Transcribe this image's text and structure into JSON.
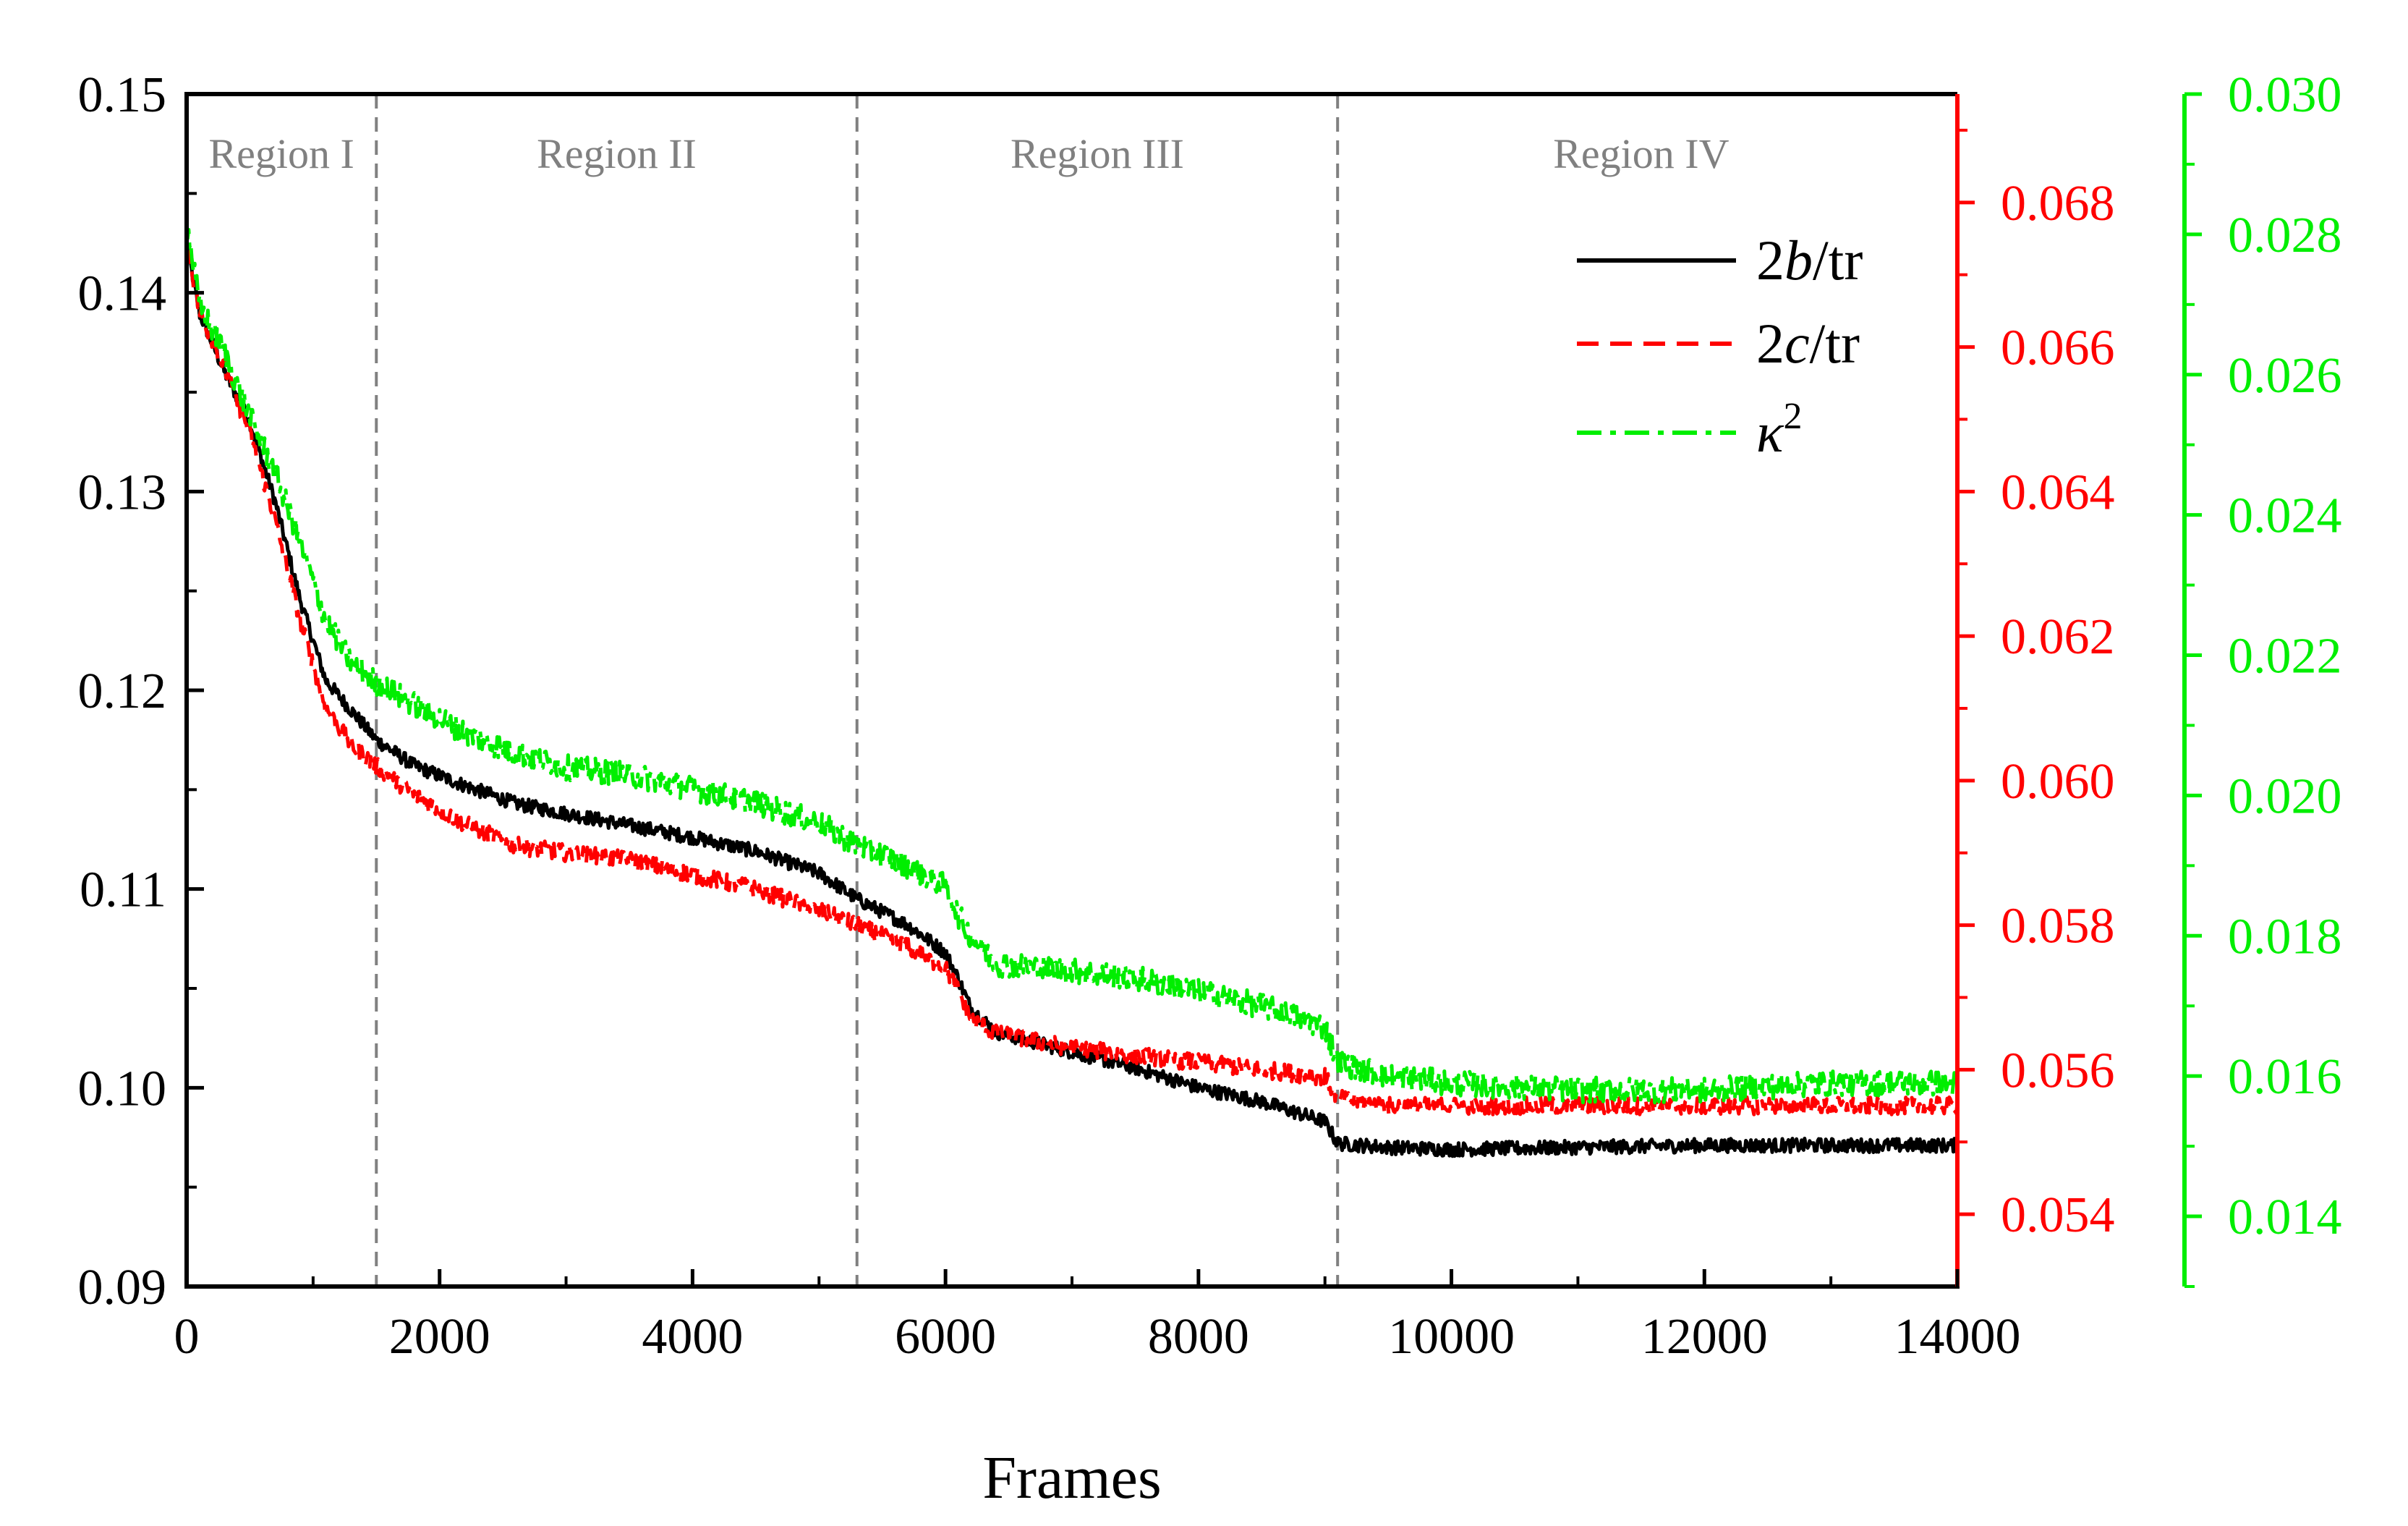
{
  "chart_data": {
    "type": "line",
    "xlabel": "Frames",
    "xlim": [
      0,
      14000
    ],
    "x_ticks": [
      0,
      2000,
      4000,
      6000,
      8000,
      10000,
      12000,
      14000
    ],
    "x_tick_labels": [
      "0",
      "2000",
      "4000",
      "6000",
      "8000",
      "10000",
      "12000",
      "14000"
    ],
    "axes": {
      "left": {
        "ylim": [
          0.09,
          0.15
        ],
        "ticks": [
          0.09,
          0.1,
          0.11,
          0.12,
          0.13,
          0.14,
          0.15
        ],
        "tick_labels": [
          "0.09",
          "0.10",
          "0.11",
          "0.12",
          "0.13",
          "0.14",
          "0.15"
        ],
        "color": "#000000"
      },
      "right_red": {
        "ylim": [
          0.053,
          0.0695
        ],
        "ticks": [
          0.054,
          0.056,
          0.058,
          0.06,
          0.062,
          0.064,
          0.066,
          0.068
        ],
        "tick_labels": [
          "0.054",
          "0.056",
          "0.058",
          "0.060",
          "0.062",
          "0.064",
          "0.066",
          "0.068"
        ],
        "color": "#ff0000"
      },
      "right_green": {
        "ylim": [
          0.013,
          0.03
        ],
        "ticks": [
          0.014,
          0.016,
          0.018,
          0.02,
          0.022,
          0.024,
          0.026,
          0.028,
          0.03
        ],
        "tick_labels": [
          "0.014",
          "0.016",
          "0.018",
          "0.020",
          "0.022",
          "0.024",
          "0.026",
          "0.028",
          "0.030"
        ],
        "color": "#00ee00"
      }
    },
    "regions": {
      "boundaries": [
        1500,
        5300,
        9100
      ],
      "labels": [
        {
          "text": "Region I",
          "x": 750
        },
        {
          "text": "Region II",
          "x": 3400
        },
        {
          "text": "Region III",
          "x": 7200
        },
        {
          "text": "Region IV",
          "x": 11500
        }
      ]
    },
    "legend": {
      "position": "top-right",
      "entries": [
        {
          "series": "2b/tr",
          "italic_part": "b",
          "prefix": "2",
          "suffix": "/tr",
          "color": "#000000",
          "dash": "solid"
        },
        {
          "series": "2c/tr",
          "italic_part": "c",
          "prefix": "2",
          "suffix": "/tr",
          "color": "#ff0000",
          "dash": "dashed"
        },
        {
          "series": "κ2",
          "italic_part": "κ",
          "prefix": "",
          "suffix": "",
          "superscript": "2",
          "color": "#00ee00",
          "dash": "dash-dot"
        }
      ]
    },
    "series": [
      {
        "name": "2b/tr",
        "axis": "left",
        "color": "#000000",
        "noise": 0.00035,
        "x": [
          0,
          100,
          300,
          500,
          700,
          900,
          1100,
          1300,
          1500,
          1800,
          2200,
          2600,
          3000,
          3500,
          4000,
          4500,
          5000,
          5300,
          5700,
          6000,
          6100,
          6200,
          6400,
          7000,
          7500,
          8000,
          8500,
          9000,
          9100,
          9500,
          10000,
          11000,
          12000,
          13000,
          14000
        ],
        "y": [
          0.1425,
          0.139,
          0.136,
          0.1335,
          0.1295,
          0.1245,
          0.1205,
          0.119,
          0.1175,
          0.1162,
          0.1152,
          0.1143,
          0.1138,
          0.1132,
          0.1126,
          0.1119,
          0.1108,
          0.1095,
          0.1082,
          0.1068,
          0.1055,
          0.104,
          0.1028,
          0.1018,
          0.101,
          0.1,
          0.0993,
          0.0983,
          0.0972,
          0.097,
          0.0969,
          0.097,
          0.0971,
          0.0971,
          0.0971
        ]
      },
      {
        "name": "2c/tr",
        "axis": "right_red",
        "color": "#ff0000",
        "noise": 0.00012,
        "x": [
          0,
          100,
          300,
          500,
          700,
          900,
          1100,
          1300,
          1500,
          1800,
          2200,
          2600,
          3000,
          3500,
          4000,
          4500,
          5000,
          5300,
          5700,
          6000,
          6100,
          6200,
          6400,
          7000,
          7500,
          8000,
          8500,
          9000,
          9100,
          9500,
          10000,
          11000,
          12000,
          13000,
          14000
        ],
        "y": [
          0.0674,
          0.0665,
          0.0657,
          0.0648,
          0.0636,
          0.0622,
          0.061,
          0.0605,
          0.0602,
          0.0598,
          0.0594,
          0.0591,
          0.059,
          0.0589,
          0.0587,
          0.0585,
          0.0582,
          0.058,
          0.0577,
          0.0574,
          0.0571,
          0.0567,
          0.0565,
          0.0563,
          0.0562,
          0.0561,
          0.056,
          0.0559,
          0.0556,
          0.0555,
          0.0555,
          0.0555,
          0.0555,
          0.0555,
          0.0555
        ]
      },
      {
        "name": "κ2",
        "axis": "right_green",
        "color": "#00ee00",
        "noise": 0.00018,
        "x": [
          0,
          100,
          300,
          500,
          700,
          900,
          1100,
          1300,
          1500,
          1800,
          2200,
          2600,
          3000,
          3500,
          4000,
          4500,
          5000,
          5300,
          5700,
          6000,
          6100,
          6200,
          6400,
          7000,
          7500,
          8000,
          8500,
          9000,
          9100,
          9500,
          10000,
          11000,
          12000,
          13000,
          14000
        ],
        "y": [
          0.0282,
          0.027,
          0.0263,
          0.0254,
          0.0246,
          0.0236,
          0.0225,
          0.0219,
          0.0216,
          0.0213,
          0.0209,
          0.0206,
          0.0204,
          0.0203,
          0.0201,
          0.0199,
          0.0196,
          0.0193,
          0.019,
          0.0187,
          0.0183,
          0.018,
          0.0176,
          0.0175,
          0.0174,
          0.0172,
          0.017,
          0.0167,
          0.0162,
          0.016,
          0.0159,
          0.0158,
          0.0158,
          0.0159,
          0.0159
        ]
      }
    ]
  }
}
